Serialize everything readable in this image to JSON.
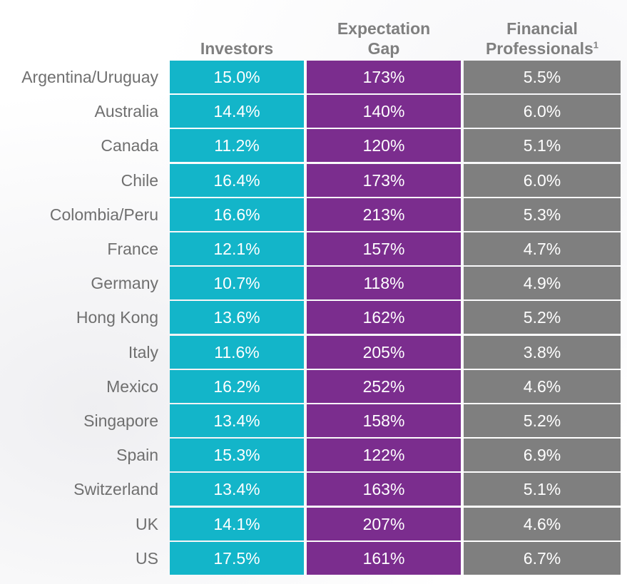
{
  "chart_data": {
    "type": "table",
    "columns": [
      {
        "key": "investors",
        "label_lines": [
          "Investors"
        ],
        "color": "#13b5c9"
      },
      {
        "key": "gap",
        "label_lines": [
          "Expectation",
          "Gap"
        ],
        "color": "#7b2d8e"
      },
      {
        "key": "fp",
        "label_lines": [
          "Financial",
          "Professionals"
        ],
        "superscript": "1",
        "color": "#7f7f7f"
      }
    ],
    "rows": [
      {
        "country": "Argentina/Uruguay",
        "investors": "15.0%",
        "gap": "173%",
        "fp": "5.5%"
      },
      {
        "country": "Australia",
        "investors": "14.4%",
        "gap": "140%",
        "fp": "6.0%"
      },
      {
        "country": "Canada",
        "investors": "11.2%",
        "gap": "120%",
        "fp": "5.1%"
      },
      {
        "country": "Chile",
        "investors": "16.4%",
        "gap": "173%",
        "fp": "6.0%"
      },
      {
        "country": "Colombia/Peru",
        "investors": "16.6%",
        "gap": "213%",
        "fp": "5.3%"
      },
      {
        "country": "France",
        "investors": "12.1%",
        "gap": "157%",
        "fp": "4.7%"
      },
      {
        "country": "Germany",
        "investors": "10.7%",
        "gap": "118%",
        "fp": "4.9%"
      },
      {
        "country": "Hong Kong",
        "investors": "13.6%",
        "gap": "162%",
        "fp": "5.2%"
      },
      {
        "country": "Italy",
        "investors": "11.6%",
        "gap": "205%",
        "fp": "3.8%"
      },
      {
        "country": "Mexico",
        "investors": "16.2%",
        "gap": "252%",
        "fp": "4.6%"
      },
      {
        "country": "Singapore",
        "investors": "13.4%",
        "gap": "158%",
        "fp": "5.2%"
      },
      {
        "country": "Spain",
        "investors": "15.3%",
        "gap": "122%",
        "fp": "6.9%"
      },
      {
        "country": "Switzerland",
        "investors": "13.4%",
        "gap": "163%",
        "fp": "5.1%"
      },
      {
        "country": "UK",
        "investors": "14.1%",
        "gap": "207%",
        "fp": "4.6%"
      },
      {
        "country": "US",
        "investors": "17.5%",
        "gap": "161%",
        "fp": "6.7%"
      }
    ]
  }
}
